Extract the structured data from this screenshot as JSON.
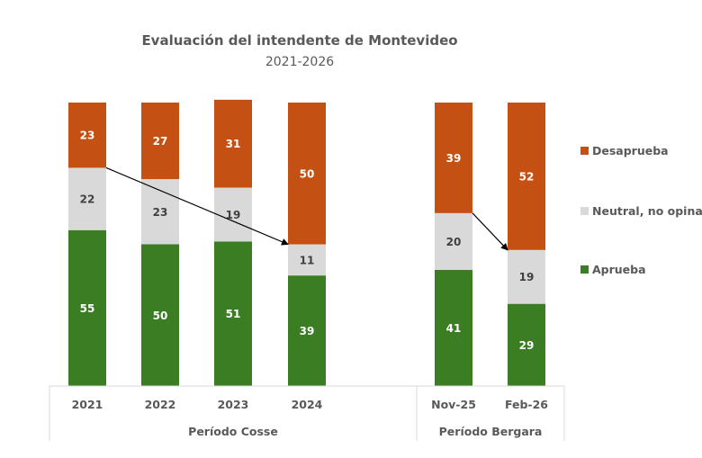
{
  "chart_data": {
    "type": "bar",
    "stacked": true,
    "title": "Evaluación del intendente de Montevideo",
    "subtitle": "2021-2026",
    "xlabel": "",
    "ylabel": "",
    "ylim": [
      0,
      100
    ],
    "grid": false,
    "legend_position": "right",
    "categories": [
      "2021",
      "2022",
      "2023",
      "2024",
      "Nov-25",
      "Feb-26"
    ],
    "groups": [
      {
        "label": "Período Cosse",
        "categories": [
          "2021",
          "2022",
          "2023",
          "2024"
        ]
      },
      {
        "label": "Período Bergara",
        "categories": [
          "Nov-25",
          "Feb-26"
        ]
      }
    ],
    "series": [
      {
        "name": "Aprueba",
        "color": "#3a7d22",
        "label_color": "#ffffff",
        "values": [
          55,
          50,
          51,
          39,
          41,
          29
        ]
      },
      {
        "name": "Neutral, no opina",
        "color": "#d9d9d9",
        "label_color": "#404040",
        "values": [
          22,
          23,
          19,
          11,
          20,
          19
        ]
      },
      {
        "name": "Desaprueba",
        "color": "#c55013",
        "label_color": "#ffffff",
        "values": [
          23,
          27,
          31,
          50,
          39,
          52
        ]
      }
    ],
    "legend_order": [
      "Desaprueba",
      "Neutral, no opina",
      "Aprueba"
    ],
    "annotations": [
      {
        "type": "arrow",
        "from": {
          "category": "2021",
          "boundary_value": 77
        },
        "to": {
          "category": "2024",
          "boundary_value": 50
        }
      },
      {
        "type": "arrow",
        "from": {
          "category": "Nov-25",
          "boundary_value": 61
        },
        "to": {
          "category": "Feb-26",
          "boundary_value": 48
        }
      }
    ]
  }
}
